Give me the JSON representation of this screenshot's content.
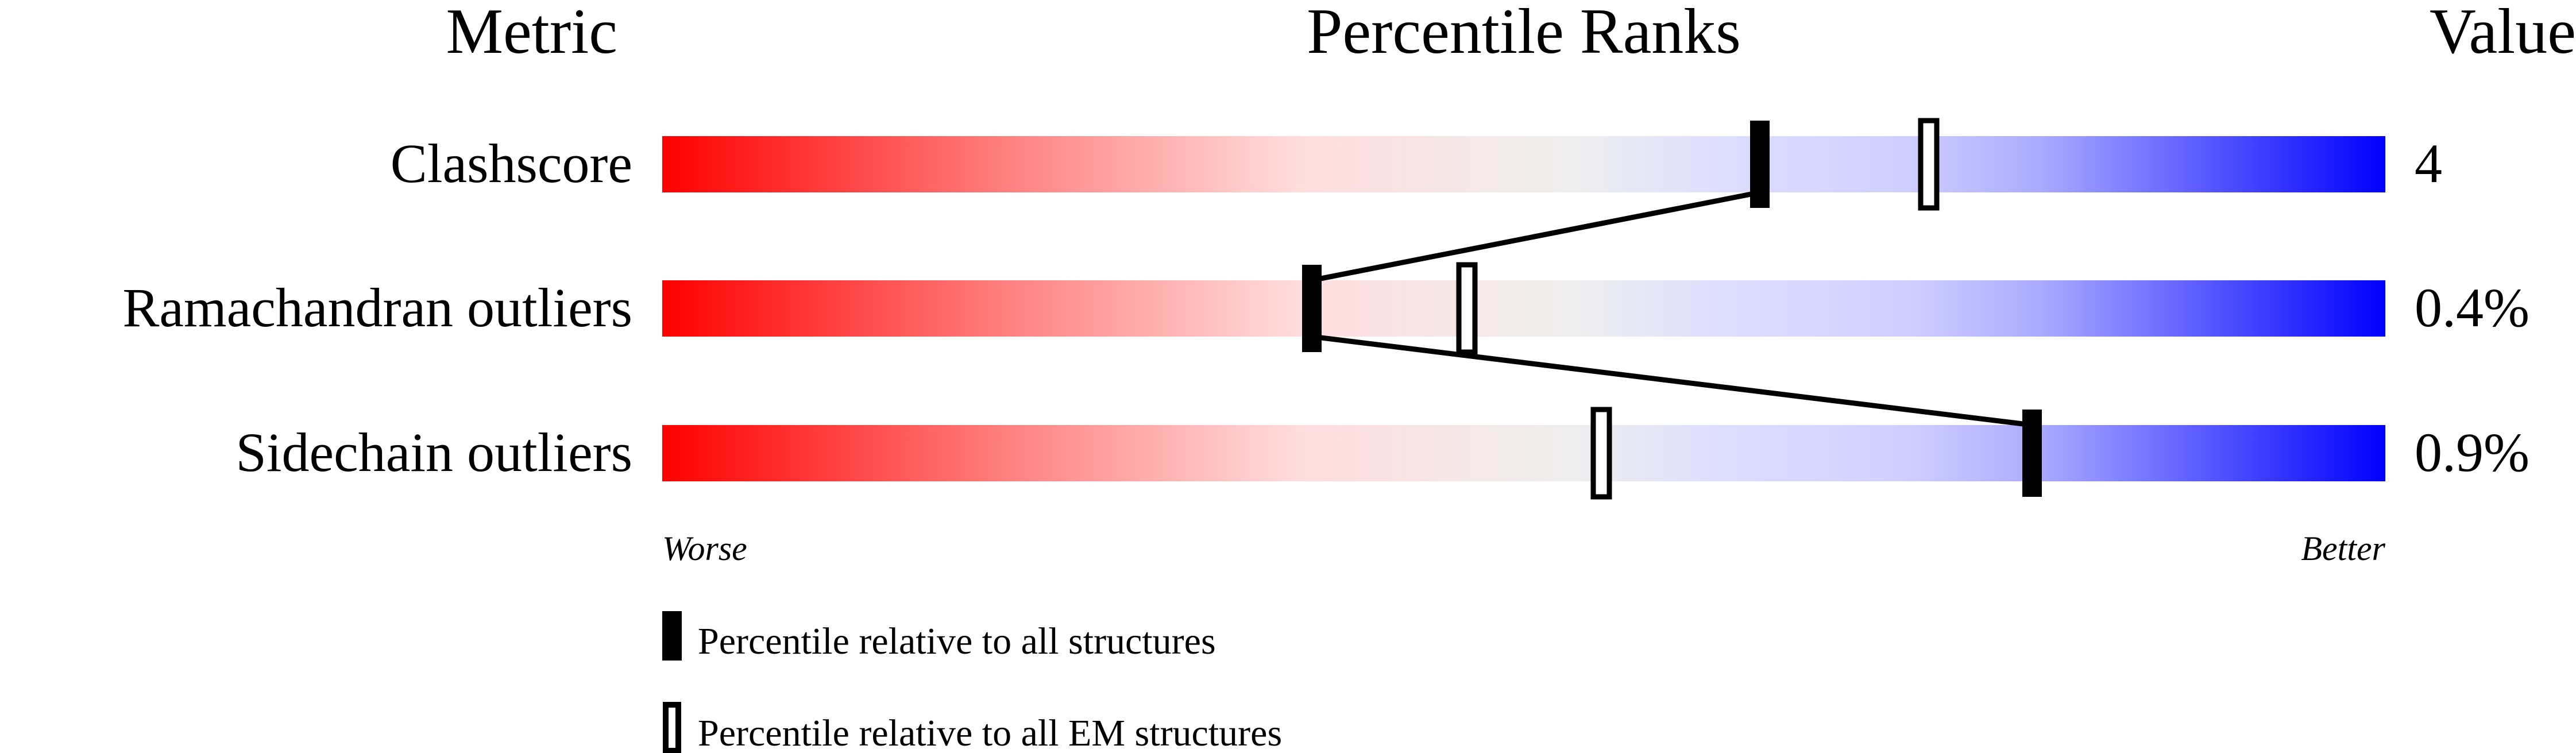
{
  "chart_data": {
    "type": "percentile-bar",
    "headers": {
      "metric": "Metric",
      "title": "Percentile Ranks",
      "value": "Value"
    },
    "xlim": [
      0,
      100
    ],
    "rows": [
      {
        "metric": "Clashscore",
        "value": "4",
        "percentile_all": 63.7,
        "percentile_em": 73.5
      },
      {
        "metric": "Ramachandran outliers",
        "value": "0.4%",
        "percentile_all": 37.7,
        "percentile_em": 46.7
      },
      {
        "metric": "Sidechain outliers",
        "value": "0.9%",
        "percentile_all": 79.5,
        "percentile_em": 54.5
      }
    ],
    "axis_labels": {
      "left": "Worse",
      "right": "Better"
    },
    "legend": [
      {
        "marker": "filled",
        "label": "Percentile relative to all structures"
      },
      {
        "marker": "hollow",
        "label": "Percentile relative to all EM structures"
      }
    ],
    "gradient_colors": [
      "#ff0000",
      "#ff8080",
      "#ffdddd",
      "#eeeeee",
      "#ddddff",
      "#d0d0ff",
      "#aaaaff",
      "#0000ff"
    ]
  }
}
